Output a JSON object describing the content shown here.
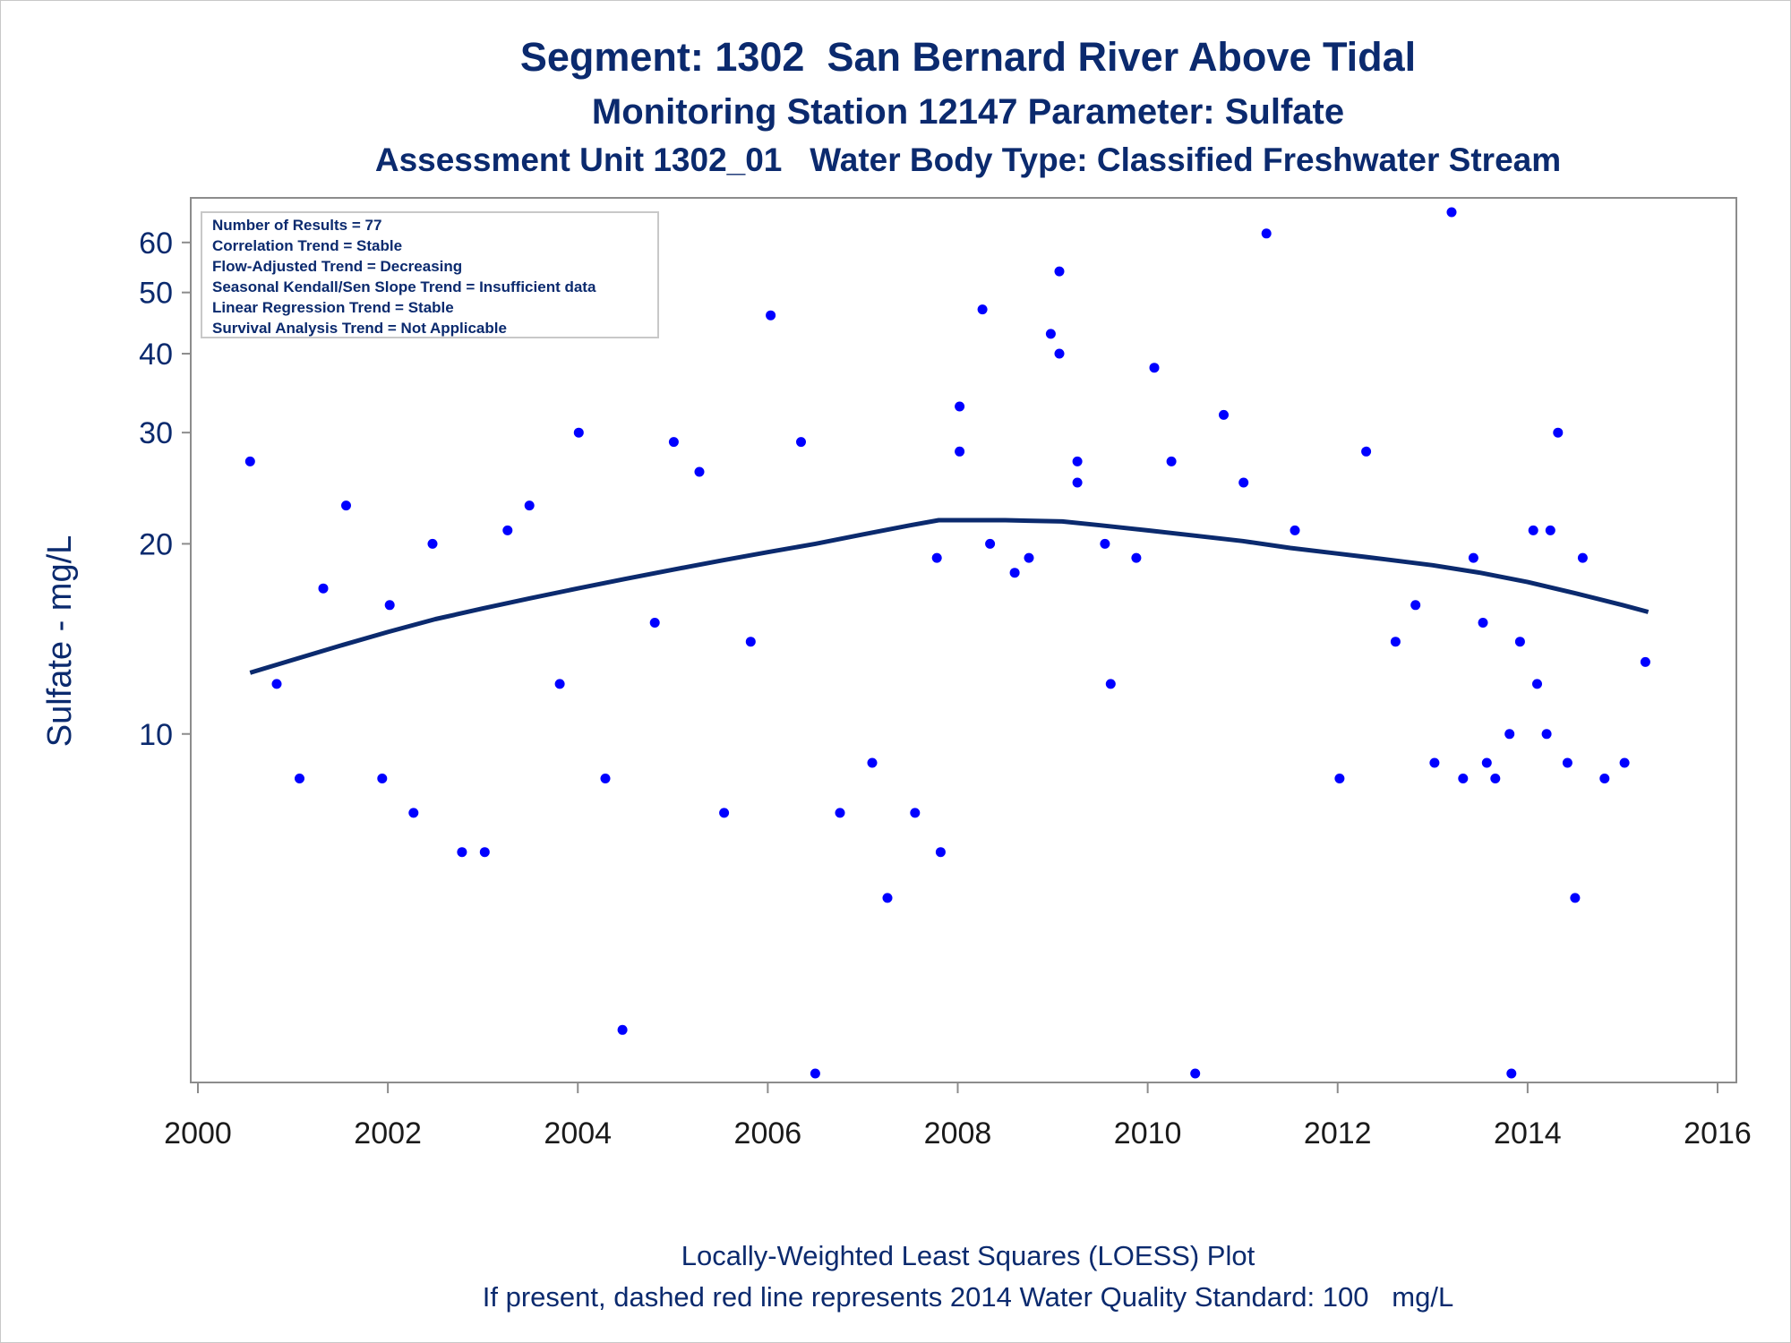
{
  "chart_data": {
    "type": "scatter",
    "title": "Segment: 1302  San Bernard River Above Tidal",
    "subtitle": "Monitoring Station 12147 Parameter: Sulfate",
    "subtitle2": "Assessment Unit 1302_01   Water Body Type: Classified Freshwater Stream",
    "xlabel": "",
    "ylabel": "Sulfate - mg/L",
    "y_scale": "log",
    "xlim": [
      2000,
      2016
    ],
    "ylim": [
      2.9,
      67
    ],
    "x_ticks": [
      "2000",
      "2002",
      "2004",
      "2006",
      "2008",
      "2010",
      "2012",
      "2014",
      "2016"
    ],
    "y_ticks": [
      {
        "label": "10",
        "value": 10
      },
      {
        "label": "20",
        "value": 20
      },
      {
        "label": "30",
        "value": 30
      },
      {
        "label": "40",
        "value": 40
      },
      {
        "label": "50",
        "value": 50
      },
      {
        "label": "60",
        "value": 60
      }
    ],
    "inset_lines": [
      "Number of Results = 77",
      "Correlation Trend = Stable",
      "Flow-Adjusted Trend = Decreasing",
      "Seasonal Kendall/Sen Slope Trend = Insufficient data",
      "Linear Regression Trend = Stable",
      "Survival Analysis Trend = Not Applicable"
    ],
    "footnotes": [
      "Locally-Weighted Least Squares (LOESS) Plot",
      "If present, dashed red line represents 2014 Water Quality Standard: 100   mg/L"
    ],
    "points": [
      {
        "x": 2000.55,
        "y": 27
      },
      {
        "x": 2000.83,
        "y": 12
      },
      {
        "x": 2001.07,
        "y": 8.5
      },
      {
        "x": 2001.32,
        "y": 17
      },
      {
        "x": 2001.56,
        "y": 23
      },
      {
        "x": 2001.94,
        "y": 8.5
      },
      {
        "x": 2002.02,
        "y": 16
      },
      {
        "x": 2002.27,
        "y": 7.5
      },
      {
        "x": 2002.47,
        "y": 20
      },
      {
        "x": 2002.78,
        "y": 6.5
      },
      {
        "x": 2003.02,
        "y": 6.5
      },
      {
        "x": 2003.26,
        "y": 21
      },
      {
        "x": 2003.49,
        "y": 23
      },
      {
        "x": 2003.81,
        "y": 12
      },
      {
        "x": 2004.01,
        "y": 30
      },
      {
        "x": 2004.29,
        "y": 8.5
      },
      {
        "x": 2004.47,
        "y": 3.4
      },
      {
        "x": 2004.81,
        "y": 15
      },
      {
        "x": 2005.01,
        "y": 29
      },
      {
        "x": 2005.28,
        "y": 26
      },
      {
        "x": 2005.54,
        "y": 7.5
      },
      {
        "x": 2005.82,
        "y": 14
      },
      {
        "x": 2006.03,
        "y": 46
      },
      {
        "x": 2006.35,
        "y": 29
      },
      {
        "x": 2006.5,
        "y": 2.9
      },
      {
        "x": 2006.76,
        "y": 7.5
      },
      {
        "x": 2007.1,
        "y": 9
      },
      {
        "x": 2007.26,
        "y": 5.5
      },
      {
        "x": 2007.55,
        "y": 7.5
      },
      {
        "x": 2007.78,
        "y": 19
      },
      {
        "x": 2007.82,
        "y": 6.5
      },
      {
        "x": 2008.02,
        "y": 33
      },
      {
        "x": 2008.02,
        "y": 28
      },
      {
        "x": 2008.26,
        "y": 47
      },
      {
        "x": 2008.34,
        "y": 20
      },
      {
        "x": 2008.6,
        "y": 18
      },
      {
        "x": 2008.75,
        "y": 19
      },
      {
        "x": 2008.98,
        "y": 43
      },
      {
        "x": 2009.07,
        "y": 54
      },
      {
        "x": 2009.07,
        "y": 40
      },
      {
        "x": 2009.26,
        "y": 27
      },
      {
        "x": 2009.26,
        "y": 25
      },
      {
        "x": 2009.55,
        "y": 20
      },
      {
        "x": 2009.61,
        "y": 12
      },
      {
        "x": 2009.88,
        "y": 19
      },
      {
        "x": 2010.07,
        "y": 38
      },
      {
        "x": 2010.25,
        "y": 27
      },
      {
        "x": 2010.5,
        "y": 2.9
      },
      {
        "x": 2010.8,
        "y": 32
      },
      {
        "x": 2011.01,
        "y": 25
      },
      {
        "x": 2011.25,
        "y": 62
      },
      {
        "x": 2011.55,
        "y": 21
      },
      {
        "x": 2012.02,
        "y": 8.5
      },
      {
        "x": 2012.3,
        "y": 28
      },
      {
        "x": 2012.61,
        "y": 14
      },
      {
        "x": 2012.82,
        "y": 16
      },
      {
        "x": 2013.02,
        "y": 9
      },
      {
        "x": 2013.2,
        "y": 67
      },
      {
        "x": 2013.32,
        "y": 8.5
      },
      {
        "x": 2013.43,
        "y": 19
      },
      {
        "x": 2013.53,
        "y": 15
      },
      {
        "x": 2013.57,
        "y": 9
      },
      {
        "x": 2013.66,
        "y": 8.5
      },
      {
        "x": 2013.81,
        "y": 10
      },
      {
        "x": 2013.83,
        "y": 2.9
      },
      {
        "x": 2013.92,
        "y": 14
      },
      {
        "x": 2014.06,
        "y": 21
      },
      {
        "x": 2014.1,
        "y": 12
      },
      {
        "x": 2014.2,
        "y": 10
      },
      {
        "x": 2014.24,
        "y": 21
      },
      {
        "x": 2014.32,
        "y": 30
      },
      {
        "x": 2014.42,
        "y": 9
      },
      {
        "x": 2014.5,
        "y": 5.5
      },
      {
        "x": 2014.58,
        "y": 19
      },
      {
        "x": 2014.81,
        "y": 8.5
      },
      {
        "x": 2015.02,
        "y": 9
      },
      {
        "x": 2015.24,
        "y": 13
      }
    ],
    "loess": [
      {
        "x": 2000.55,
        "y": 12.5
      },
      {
        "x": 2001.0,
        "y": 13.1
      },
      {
        "x": 2001.5,
        "y": 13.8
      },
      {
        "x": 2002.0,
        "y": 14.5
      },
      {
        "x": 2002.5,
        "y": 15.2
      },
      {
        "x": 2003.0,
        "y": 15.8
      },
      {
        "x": 2003.5,
        "y": 16.4
      },
      {
        "x": 2004.0,
        "y": 17.0
      },
      {
        "x": 2004.5,
        "y": 17.6
      },
      {
        "x": 2005.0,
        "y": 18.2
      },
      {
        "x": 2005.5,
        "y": 18.8
      },
      {
        "x": 2006.0,
        "y": 19.4
      },
      {
        "x": 2006.5,
        "y": 20.0
      },
      {
        "x": 2007.0,
        "y": 20.7
      },
      {
        "x": 2007.5,
        "y": 21.4
      },
      {
        "x": 2007.8,
        "y": 21.8
      },
      {
        "x": 2008.5,
        "y": 21.8
      },
      {
        "x": 2009.1,
        "y": 21.7
      },
      {
        "x": 2009.5,
        "y": 21.4
      },
      {
        "x": 2010.0,
        "y": 21.0
      },
      {
        "x": 2010.5,
        "y": 20.6
      },
      {
        "x": 2011.0,
        "y": 20.2
      },
      {
        "x": 2011.5,
        "y": 19.7
      },
      {
        "x": 2012.0,
        "y": 19.3
      },
      {
        "x": 2012.5,
        "y": 18.9
      },
      {
        "x": 2013.0,
        "y": 18.5
      },
      {
        "x": 2013.5,
        "y": 18.0
      },
      {
        "x": 2014.0,
        "y": 17.4
      },
      {
        "x": 2014.5,
        "y": 16.7
      },
      {
        "x": 2015.0,
        "y": 16.0
      },
      {
        "x": 2015.27,
        "y": 15.6
      }
    ],
    "colors": {
      "points": "#0000ff",
      "loess": "#0b2a6e",
      "text": "#0b2a6e",
      "axis": "#8c8c8c"
    }
  }
}
